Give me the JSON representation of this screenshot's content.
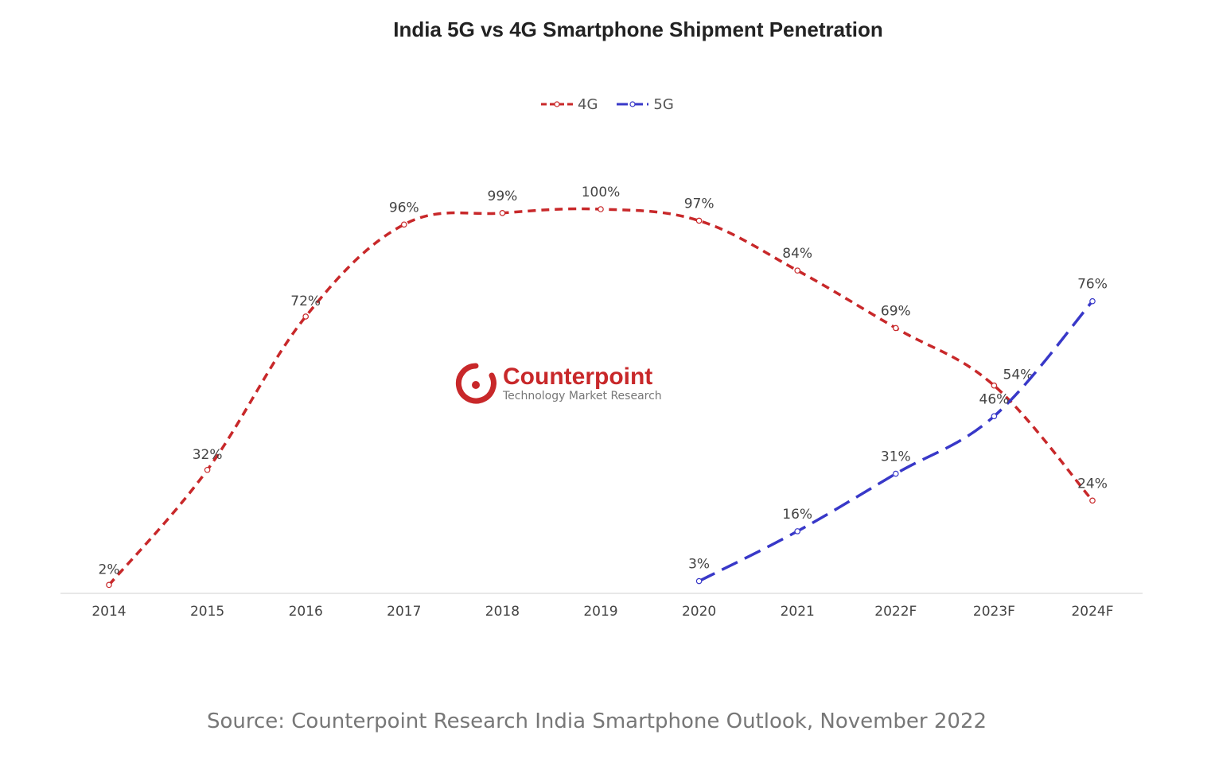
{
  "chart_data": {
    "type": "line",
    "title": "India 5G vs 4G Smartphone Shipment Penetration",
    "categories": [
      "2014",
      "2015",
      "2016",
      "2017",
      "2018",
      "2019",
      "2020",
      "2021",
      "2022F",
      "2023F",
      "2024F"
    ],
    "series": [
      {
        "name": "4G",
        "color": "#c8282a",
        "values": [
          2,
          32,
          72,
          96,
          99,
          100,
          97,
          84,
          69,
          54,
          24
        ],
        "labels": [
          "2%",
          "32%",
          "72%",
          "96%",
          "99%",
          "100%",
          "97%",
          "84%",
          "69%",
          "54%",
          "24%"
        ]
      },
      {
        "name": "5G",
        "color": "#3838c8",
        "values": [
          null,
          null,
          null,
          null,
          null,
          null,
          3,
          16,
          31,
          46,
          76
        ],
        "labels": [
          null,
          null,
          null,
          null,
          null,
          null,
          "3%",
          "16%",
          "31%",
          "46%",
          "76%"
        ]
      }
    ],
    "ylim": [
      0,
      100
    ],
    "grid": false,
    "legend": "top-center",
    "xlabel": "",
    "ylabel": ""
  },
  "watermark": {
    "name": "Counterpoint",
    "tagline": "Technology Market Research"
  },
  "source": "Source: Counterpoint Research India Smartphone Outlook, November 2022"
}
